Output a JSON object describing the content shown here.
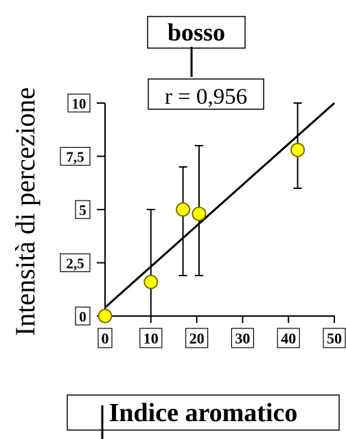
{
  "chart_data": {
    "type": "scatter",
    "title": "bosso",
    "annotation": "r = 0,956",
    "xlabel": "Indice aromatico",
    "ylabel": "Intensità di percezione",
    "xlim": [
      0,
      50
    ],
    "ylim": [
      0,
      10
    ],
    "x_ticks": [
      0,
      10,
      20,
      30,
      40,
      50
    ],
    "x_tick_labels": [
      "0",
      "10",
      "20",
      "30",
      "40",
      "50"
    ],
    "y_ticks": [
      0,
      2.5,
      5,
      7.5,
      10
    ],
    "y_tick_labels": [
      "0",
      "2,5",
      "5",
      "7,5",
      "10"
    ],
    "grid": false,
    "points": [
      {
        "x": 0,
        "y": 0
      },
      {
        "x": 10,
        "y": 1.6,
        "err_low": 0,
        "err_high": 5
      },
      {
        "x": 17,
        "y": 5,
        "err_low": 1.9,
        "err_high": 7
      },
      {
        "x": 20.5,
        "y": 4.8,
        "err_low": 1.9,
        "err_high": 8
      },
      {
        "x": 42,
        "y": 7.8,
        "err_low": 6,
        "err_high": 10
      }
    ],
    "fit_line": {
      "x": [
        0,
        50
      ],
      "y": [
        0.4,
        10
      ]
    },
    "colors": {
      "marker_fill": "#ffff00",
      "marker_stroke": "#7a6a00",
      "line": "#000000"
    }
  }
}
